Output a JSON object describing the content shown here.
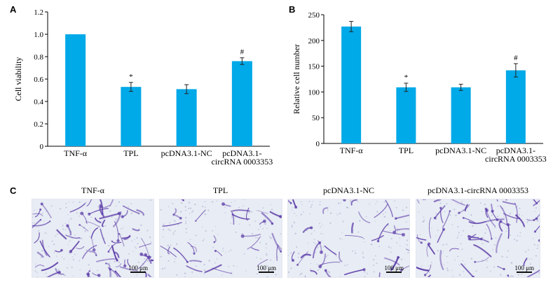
{
  "panels": {
    "A": "A",
    "B": "B",
    "C": "C"
  },
  "chart_data": [
    {
      "panel": "A",
      "type": "bar",
      "categories": [
        "TNF-α",
        "TPL",
        "pcDNA3.1-NC",
        "pcDNA3.1-circRNA 0003353"
      ],
      "category_lines": [
        [
          "TNF-α"
        ],
        [
          "TPL"
        ],
        [
          "pcDNA3.1-NC"
        ],
        [
          "pcDNA3.1-",
          "circRNA 0003353"
        ]
      ],
      "values": [
        1.0,
        0.53,
        0.51,
        0.76
      ],
      "errors": [
        0.0,
        0.04,
        0.04,
        0.03
      ],
      "marks": [
        "",
        "*",
        "",
        "#"
      ],
      "ylabel": "Cell viability",
      "ylim": [
        0,
        1.2
      ],
      "yticks": [
        "0",
        "0.2",
        "0.4",
        "0.6",
        "0.8",
        "1.0",
        "1.2"
      ],
      "color": "#00a9e8"
    },
    {
      "panel": "B",
      "type": "bar",
      "categories": [
        "TNF-α",
        "TPL",
        "pcDNA3.1-NC",
        "pcDNA3.1-circRNA 0003353"
      ],
      "category_lines": [
        [
          "TNF-α"
        ],
        [
          "TPL"
        ],
        [
          "pcDNA3.1-NC"
        ],
        [
          "pcDNA3.1-",
          "circRNA 0003353"
        ]
      ],
      "values": [
        227,
        109,
        109,
        142
      ],
      "errors": [
        10,
        8,
        6,
        13
      ],
      "marks": [
        "",
        "*",
        "",
        "#"
      ],
      "ylabel": "Relative cell number",
      "ylim": [
        0,
        250
      ],
      "yticks": [
        "0",
        "50",
        "100",
        "150",
        "200",
        "250"
      ],
      "color": "#00a9e8"
    }
  ],
  "images": [
    {
      "title": "TNF-α",
      "scale": "100 μm",
      "density": 1.0
    },
    {
      "title": "TPL",
      "scale": "100 μm",
      "density": 0.45
    },
    {
      "title": "pcDNA3.1-NC",
      "scale": "100 μm",
      "density": 0.5
    },
    {
      "title": "pcDNA3.1-circRNA 0003353",
      "scale": "100 μm",
      "density": 0.8
    }
  ],
  "colors": {
    "bar": "#00a9e8",
    "stain": "#5a3aa8",
    "background": "#e8ecf4"
  }
}
